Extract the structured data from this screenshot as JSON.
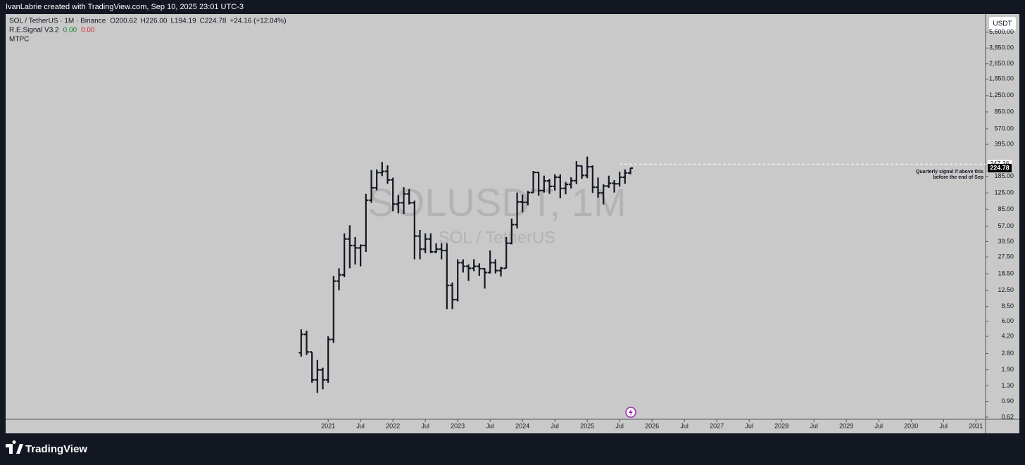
{
  "header": {
    "credit": "IvanLabrie created with TradingView.com, Sep 10, 2025 23:01 UTC-3",
    "symbol": "SOL / TetherUS · 1M · Binance",
    "ohlc": [
      {
        "key": "O",
        "value": "200.62"
      },
      {
        "key": "H",
        "value": "226.00"
      },
      {
        "key": "L",
        "value": "194.19"
      },
      {
        "key": "C",
        "value": "224.78"
      }
    ],
    "change": "+24.16 (+12.04%)",
    "indicators": [
      {
        "name": "R.E.Signal V3.2",
        "values": [
          "0.00",
          "0.00"
        ]
      },
      {
        "name": "MTPC",
        "values": []
      }
    ],
    "currency": "USDT"
  },
  "chart_data": {
    "type": "ohlc",
    "log_scale": true,
    "color": "#131722",
    "watermark": [
      "SOLUSDT, 1M",
      "SOL / TetherUS"
    ],
    "x": [
      2020.583,
      2020.667,
      2020.75,
      2020.833,
      2020.917,
      2021,
      2021.083,
      2021.167,
      2021.25,
      2021.333,
      2021.417,
      2021.5,
      2021.583,
      2021.667,
      2021.75,
      2021.833,
      2021.917,
      2022,
      2022.083,
      2022.167,
      2022.25,
      2022.333,
      2022.417,
      2022.5,
      2022.583,
      2022.667,
      2022.75,
      2022.833,
      2022.917,
      2023,
      2023.083,
      2023.167,
      2023.25,
      2023.333,
      2023.417,
      2023.5,
      2023.583,
      2023.667,
      2023.75,
      2023.833,
      2023.917,
      2024,
      2024.083,
      2024.167,
      2024.25,
      2024.333,
      2024.417,
      2024.5,
      2024.583,
      2024.667,
      2024.75,
      2024.833,
      2024.917,
      2025,
      2025.083,
      2025.167,
      2025.25,
      2025.333,
      2025.417,
      2025.5,
      2025.583,
      2025.667
    ],
    "open": [
      2.85,
      4.4,
      2.9,
      1.5,
      1.9,
      1.5,
      3.9,
      15.5,
      18,
      42,
      36,
      34,
      36,
      105,
      141,
      202,
      208,
      170,
      96,
      99,
      122,
      99,
      45,
      33,
      42,
      31,
      33,
      32,
      14,
      10,
      24,
      22,
      21,
      22,
      20.8,
      19,
      24,
      19.9,
      21,
      38,
      59,
      101,
      100,
      126,
      203,
      132,
      166,
      146,
      181,
      139,
      153,
      167,
      237,
      189,
      232,
      143,
      125,
      147,
      157,
      155,
      181,
      200.62
    ],
    "high": [
      4.95,
      4.8,
      2.9,
      2.4,
      2.0,
      4.2,
      17.5,
      21,
      48,
      58,
      44,
      37,
      122,
      215,
      218,
      260,
      240,
      179,
      119,
      143,
      137,
      104,
      52,
      48,
      48,
      38,
      38,
      38,
      15,
      26,
      26,
      23,
      26,
      23.6,
      21,
      32,
      26,
      21.8,
      44,
      68,
      126,
      120,
      131,
      210,
      205,
      188,
      174,
      194,
      194,
      162,
      181,
      265,
      238,
      295,
      240,
      180,
      153,
      188,
      169,
      206,
      218,
      226
    ],
    "low": [
      2.6,
      2.7,
      1.4,
      1.1,
      1.2,
      1.4,
      3.6,
      12.5,
      17,
      21,
      23,
      22,
      31,
      99,
      133,
      186,
      155,
      81,
      77,
      76,
      95,
      26,
      26,
      30,
      30,
      30,
      26,
      8,
      8,
      9.6,
      19,
      15.6,
      19.6,
      17.6,
      13,
      18.6,
      18.6,
      17.3,
      21,
      37,
      54,
      79,
      93,
      125,
      117,
      126,
      122,
      132,
      110,
      121,
      139,
      154,
      175,
      177,
      125,
      112,
      95,
      141,
      126,
      145,
      155,
      194.19
    ],
    "close": [
      4.4,
      2.9,
      1.5,
      1.9,
      1.5,
      3.9,
      15.5,
      18,
      42,
      36,
      34,
      36,
      105,
      141,
      202,
      208,
      170,
      96,
      99,
      122,
      99,
      45,
      33,
      42,
      31,
      33,
      32,
      14,
      10,
      24,
      22,
      21,
      22,
      20.8,
      19,
      24,
      19.9,
      21,
      38,
      59,
      101,
      100,
      126,
      203,
      132,
      166,
      146,
      181,
      139,
      153,
      167,
      237,
      189,
      232,
      143,
      125,
      147,
      157,
      155,
      181,
      200.62,
      224.78
    ],
    "xlim": [
      2016.02,
      2031.15
    ],
    "xticks": [
      {
        "value": 2021,
        "label": "2021"
      },
      {
        "value": 2021.5,
        "label": "Jul"
      },
      {
        "value": 2022,
        "label": "2022"
      },
      {
        "value": 2022.5,
        "label": "Jul"
      },
      {
        "value": 2023,
        "label": "2023"
      },
      {
        "value": 2023.5,
        "label": "Jul"
      },
      {
        "value": 2024,
        "label": "2024"
      },
      {
        "value": 2024.5,
        "label": "Jul"
      },
      {
        "value": 2025,
        "label": "2025"
      },
      {
        "value": 2025.5,
        "label": "Jul"
      },
      {
        "value": 2026,
        "label": "2026"
      },
      {
        "value": 2026.5,
        "label": "Jul"
      },
      {
        "value": 2027,
        "label": "2027"
      },
      {
        "value": 2027.5,
        "label": "Jul"
      },
      {
        "value": 2028,
        "label": "2028"
      },
      {
        "value": 2028.5,
        "label": "Jul"
      },
      {
        "value": 2029,
        "label": "2029"
      },
      {
        "value": 2029.5,
        "label": "Jul"
      },
      {
        "value": 2030,
        "label": "2030"
      },
      {
        "value": 2030.5,
        "label": "Jul"
      },
      {
        "value": 2031,
        "label": "2031"
      }
    ],
    "ylim": [
      0.59,
      8600
    ],
    "yticks": [
      0.62,
      {
        "value": 0.9,
        "label": "0.90"
      },
      {
        "value": 1.3,
        "label": "1.30"
      },
      {
        "value": 1.9,
        "label": "1.90"
      },
      {
        "value": 2.8,
        "label": "2.80"
      },
      {
        "value": 4.2,
        "label": "4.20"
      },
      {
        "value": 6,
        "label": "6.00"
      },
      {
        "value": 8.5,
        "label": "8.50"
      },
      {
        "value": 12.5,
        "label": "12.50"
      },
      {
        "value": 18.5,
        "label": "18.50"
      },
      {
        "value": 27.5,
        "label": "27.50"
      },
      {
        "value": 39.5,
        "label": "39.50"
      },
      {
        "value": 57,
        "label": "57.00"
      },
      {
        "value": 85,
        "label": "85.00"
      },
      {
        "value": 125,
        "label": "125.00"
      },
      {
        "value": 185,
        "label": "185.00"
      },
      {
        "value": 395,
        "label": "395.00"
      },
      {
        "value": 570,
        "label": "570.00"
      },
      {
        "value": 850,
        "label": "850.00"
      },
      {
        "value": 1250,
        "label": "1,250.00"
      },
      {
        "value": 1850,
        "label": "1,850.00"
      },
      {
        "value": 2650,
        "label": "2,650.00"
      },
      {
        "value": 3850,
        "label": "3,850.00"
      },
      {
        "value": 5600,
        "label": "5,600.00"
      }
    ],
    "price_line": 247.26,
    "last_price": 224.78,
    "annotation": [
      "Quarterly signal if above this",
      "before the end of Sep"
    ]
  },
  "footer": {
    "brand": "TradingView"
  }
}
